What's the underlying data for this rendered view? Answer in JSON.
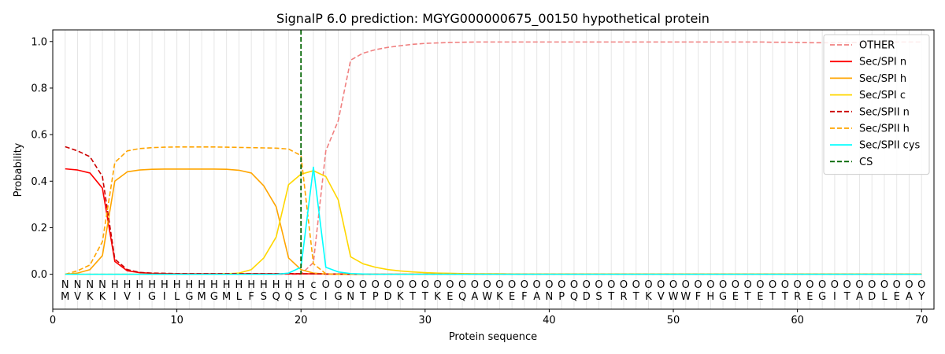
{
  "chart_data": {
    "type": "line",
    "title": "SignalP 6.0 prediction: MGYG000000675_00150 hypothetical protein",
    "xlabel": "Protein sequence",
    "ylabel": "Probability",
    "xlim": [
      0,
      71
    ],
    "ylim": [
      -0.15,
      1.05
    ],
    "xticks": [
      0,
      10,
      20,
      30,
      40,
      50,
      60,
      70
    ],
    "yticks": [
      0.0,
      0.2,
      0.4,
      0.6,
      0.8,
      1.0
    ],
    "ytick_labels": [
      "0.0",
      "0.2",
      "0.4",
      "0.6",
      "0.8",
      "1.0"
    ],
    "grid": "vertical lines at every residue",
    "legend_position": "top-right",
    "sequence": [
      "M",
      "V",
      "K",
      "K",
      "I",
      "V",
      "I",
      "G",
      "I",
      "L",
      "G",
      "M",
      "G",
      "M",
      "L",
      "F",
      "S",
      "Q",
      "Q",
      "S",
      "C",
      "I",
      "G",
      "N",
      "T",
      "P",
      "D",
      "K",
      "T",
      "T",
      "K",
      "E",
      "Q",
      "A",
      "W",
      "K",
      "E",
      "F",
      "A",
      "N",
      "P",
      "Q",
      "D",
      "S",
      "T",
      "R",
      "T",
      "K",
      "V",
      "W",
      "W",
      "F",
      "H",
      "G",
      "E",
      "T",
      "E",
      "T",
      "T",
      "R",
      "E",
      "G",
      "I",
      "T",
      "A",
      "D",
      "L",
      "E",
      "A",
      "Y"
    ],
    "region_labels": [
      "N",
      "N",
      "N",
      "N",
      "H",
      "H",
      "H",
      "H",
      "H",
      "H",
      "H",
      "H",
      "H",
      "H",
      "H",
      "H",
      "H",
      "H",
      "H",
      "H",
      "c",
      "O",
      "O",
      "O",
      "O",
      "O",
      "O",
      "O",
      "O",
      "O",
      "O",
      "O",
      "O",
      "O",
      "O",
      "O",
      "O",
      "O",
      "O",
      "O",
      "O",
      "O",
      "O",
      "O",
      "O",
      "O",
      "O",
      "O",
      "O",
      "O",
      "O",
      "O",
      "O",
      "O",
      "O",
      "O",
      "O",
      "O",
      "O",
      "O",
      "O",
      "O",
      "O",
      "O",
      "O",
      "O",
      "O",
      "O",
      "O",
      "O"
    ],
    "region_colors": {
      "N": "#ff0000",
      "H": "#ffa500",
      "c": "#00e5e5",
      "O": "#808080"
    },
    "cleavage_site": 20,
    "series": [
      {
        "name": "OTHER",
        "color": "#f08080",
        "dash": "dashed",
        "values": [
          0.0,
          0.0,
          0.0,
          0.0,
          0.0,
          0.0,
          0.0,
          0.0,
          0.0,
          0.0,
          0.0,
          0.0,
          0.0,
          0.0,
          0.0,
          0.0,
          0.0,
          0.0,
          0.0,
          0.0,
          0.05,
          0.53,
          0.66,
          0.92,
          0.95,
          0.965,
          0.975,
          0.982,
          0.988,
          0.992,
          0.994,
          0.996,
          0.997,
          0.998,
          0.998,
          0.998,
          0.998,
          0.998,
          0.998,
          0.998,
          0.998,
          0.998,
          0.998,
          0.998,
          0.998,
          0.998,
          0.998,
          0.998,
          0.998,
          0.998,
          0.998,
          0.998,
          0.998,
          0.998,
          0.998,
          0.998,
          0.998,
          0.997,
          0.997,
          0.996,
          0.995,
          0.995,
          0.995,
          0.995,
          0.996,
          0.997,
          0.997,
          0.998,
          0.998,
          0.998
        ]
      },
      {
        "name": "Sec/SPI n",
        "color": "#ff0000",
        "dash": "solid",
        "values": [
          0.453,
          0.448,
          0.435,
          0.37,
          0.055,
          0.015,
          0.007,
          0.004,
          0.003,
          0.002,
          0.002,
          0.002,
          0.002,
          0.002,
          0.002,
          0.002,
          0.002,
          0.002,
          0.002,
          0.002,
          0.002,
          0.001,
          0.001,
          0.0,
          0.0,
          0.0,
          0.0,
          0.0,
          0.0,
          0.0,
          0.0,
          0.0,
          0.0,
          0.0,
          0.0,
          0.0,
          0.0,
          0.0,
          0.0,
          0.0,
          0.0,
          0.0,
          0.0,
          0.0,
          0.0,
          0.0,
          0.0,
          0.0,
          0.0,
          0.0,
          0.0,
          0.0,
          0.0,
          0.0,
          0.0,
          0.0,
          0.0,
          0.0,
          0.0,
          0.0,
          0.0,
          0.0,
          0.0,
          0.0,
          0.0,
          0.0,
          0.0,
          0.0,
          0.0,
          0.0
        ]
      },
      {
        "name": "Sec/SPI h",
        "color": "#ffa500",
        "dash": "solid",
        "values": [
          0.0,
          0.005,
          0.02,
          0.08,
          0.4,
          0.44,
          0.448,
          0.451,
          0.452,
          0.452,
          0.452,
          0.452,
          0.452,
          0.451,
          0.447,
          0.435,
          0.38,
          0.29,
          0.07,
          0.02,
          0.005,
          0.001,
          0.0,
          0.0,
          0.0,
          0.0,
          0.0,
          0.0,
          0.0,
          0.0,
          0.0,
          0.0,
          0.0,
          0.0,
          0.0,
          0.0,
          0.0,
          0.0,
          0.0,
          0.0,
          0.0,
          0.0,
          0.0,
          0.0,
          0.0,
          0.0,
          0.0,
          0.0,
          0.0,
          0.0,
          0.0,
          0.0,
          0.0,
          0.0,
          0.0,
          0.0,
          0.0,
          0.0,
          0.0,
          0.0,
          0.0,
          0.0,
          0.0,
          0.0,
          0.0,
          0.0,
          0.0,
          0.0,
          0.0,
          0.0
        ]
      },
      {
        "name": "Sec/SPI c",
        "color": "#ffd700",
        "dash": "solid",
        "values": [
          0.0,
          0.0,
          0.0,
          0.0,
          0.0,
          0.0,
          0.0,
          0.0,
          0.0,
          0.0,
          0.0,
          0.0,
          0.0,
          0.002,
          0.005,
          0.02,
          0.07,
          0.16,
          0.385,
          0.43,
          0.445,
          0.42,
          0.32,
          0.075,
          0.045,
          0.03,
          0.02,
          0.014,
          0.01,
          0.007,
          0.005,
          0.004,
          0.003,
          0.002,
          0.002,
          0.002,
          0.001,
          0.001,
          0.001,
          0.001,
          0.001,
          0.001,
          0.001,
          0.001,
          0.001,
          0.001,
          0.001,
          0.001,
          0.001,
          0.001,
          0.001,
          0.001,
          0.001,
          0.001,
          0.001,
          0.001,
          0.001,
          0.001,
          0.001,
          0.001,
          0.001,
          0.001,
          0.001,
          0.001,
          0.001,
          0.001,
          0.001,
          0.001,
          0.001,
          0.001
        ]
      },
      {
        "name": "Sec/SPII n",
        "color": "#cc0000",
        "dash": "dashed",
        "values": [
          0.548,
          0.53,
          0.505,
          0.42,
          0.065,
          0.02,
          0.008,
          0.005,
          0.004,
          0.003,
          0.003,
          0.003,
          0.003,
          0.003,
          0.003,
          0.003,
          0.003,
          0.003,
          0.003,
          0.002,
          0.002,
          0.001,
          0.001,
          0.0,
          0.0,
          0.0,
          0.0,
          0.0,
          0.0,
          0.0,
          0.0,
          0.0,
          0.0,
          0.0,
          0.0,
          0.0,
          0.0,
          0.0,
          0.0,
          0.0,
          0.0,
          0.0,
          0.0,
          0.0,
          0.0,
          0.0,
          0.0,
          0.0,
          0.0,
          0.0,
          0.0,
          0.0,
          0.0,
          0.0,
          0.0,
          0.0,
          0.0,
          0.0,
          0.0,
          0.0,
          0.0,
          0.0,
          0.0,
          0.0,
          0.0,
          0.0,
          0.0,
          0.0,
          0.0,
          0.0
        ]
      },
      {
        "name": "Sec/SPII h",
        "color": "#ffa500",
        "dash": "dashed",
        "values": [
          0.0,
          0.015,
          0.04,
          0.14,
          0.48,
          0.53,
          0.54,
          0.544,
          0.546,
          0.547,
          0.547,
          0.547,
          0.547,
          0.546,
          0.545,
          0.544,
          0.543,
          0.542,
          0.538,
          0.51,
          0.045,
          0.002,
          0.0,
          0.0,
          0.0,
          0.0,
          0.0,
          0.0,
          0.0,
          0.0,
          0.0,
          0.0,
          0.0,
          0.0,
          0.0,
          0.0,
          0.0,
          0.0,
          0.0,
          0.0,
          0.0,
          0.0,
          0.0,
          0.0,
          0.0,
          0.0,
          0.0,
          0.0,
          0.0,
          0.0,
          0.0,
          0.0,
          0.0,
          0.0,
          0.0,
          0.0,
          0.0,
          0.0,
          0.0,
          0.0,
          0.0,
          0.0,
          0.0,
          0.0,
          0.0,
          0.0,
          0.0,
          0.0,
          0.0,
          0.0
        ]
      },
      {
        "name": "Sec/SPII cys",
        "color": "#00ffff",
        "dash": "solid",
        "values": [
          0.0,
          0.0,
          0.0,
          0.0,
          0.0,
          0.0,
          0.0,
          0.0,
          0.0,
          0.0,
          0.0,
          0.0,
          0.0,
          0.0,
          0.0,
          0.0,
          0.0,
          0.0,
          0.005,
          0.03,
          0.46,
          0.03,
          0.01,
          0.003,
          0.001,
          0.0,
          0.0,
          0.0,
          0.0,
          0.0,
          0.0,
          0.0,
          0.0,
          0.0,
          0.0,
          0.0,
          0.0,
          0.0,
          0.0,
          0.0,
          0.0,
          0.0,
          0.0,
          0.0,
          0.0,
          0.0,
          0.0,
          0.0,
          0.0,
          0.0,
          0.0,
          0.0,
          0.0,
          0.0,
          0.0,
          0.0,
          0.0,
          0.0,
          0.0,
          0.0,
          0.0,
          0.0,
          0.0,
          0.0,
          0.0,
          0.0,
          0.0,
          0.0,
          0.0,
          0.0
        ]
      },
      {
        "name": "CS",
        "color": "#006400",
        "dash": "dashed",
        "values": []
      }
    ]
  }
}
